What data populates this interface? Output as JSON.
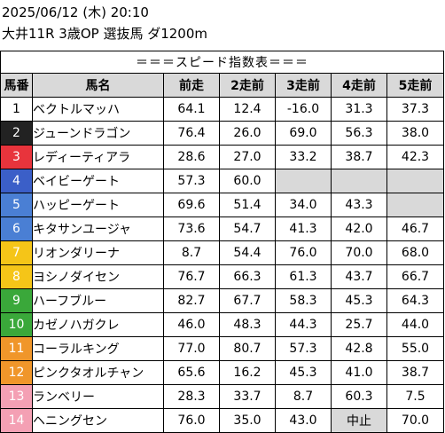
{
  "header": {
    "line1": "2025/06/12 (木) 20:10",
    "line2": "大井11R 3歳OP 選抜馬 ダ1200m"
  },
  "table_title": "＝＝＝スピード指数表＝＝＝",
  "columns": [
    "馬番",
    "馬名",
    "前走",
    "2走前",
    "3走前",
    "4走前",
    "5走前"
  ],
  "colors": {
    "1": "#ffffff",
    "2": "#222222",
    "3": "#e8343c",
    "4": "#3b5fc8",
    "5": "#4a7fd4",
    "6": "#4a7fd4",
    "7": "#f5c518",
    "8": "#f5c518",
    "9": "#3aa83a",
    "10": "#3aa83a",
    "11": "#f0962a",
    "12": "#f0962a",
    "13": "#f4a0b4",
    "14": "#f4a0b4"
  },
  "rows": [
    {
      "num": "1",
      "name": "ベクトルマッハ",
      "v": [
        "64.1",
        "12.4",
        "-16.0",
        "31.3",
        "37.3"
      ],
      "bg": "#ffffff",
      "fg": "#000000"
    },
    {
      "num": "2",
      "name": "ジューンドラゴン",
      "v": [
        "76.4",
        "26.0",
        "69.0",
        "56.3",
        "38.0"
      ],
      "bg": "#222222",
      "fg": "#ffffff"
    },
    {
      "num": "3",
      "name": "レディーティアラ",
      "v": [
        "28.6",
        "27.0",
        "33.2",
        "38.7",
        "42.3"
      ],
      "bg": "#e8343c",
      "fg": "#ffffff"
    },
    {
      "num": "4",
      "name": "ベイビーゲート",
      "v": [
        "57.3",
        "60.0",
        "",
        "",
        ""
      ],
      "bg": "#3b5fc8",
      "fg": "#ffffff"
    },
    {
      "num": "5",
      "name": "ハッピーゲート",
      "v": [
        "69.6",
        "51.4",
        "34.0",
        "43.3",
        ""
      ],
      "bg": "#4a7fd4",
      "fg": "#ffffff"
    },
    {
      "num": "6",
      "name": "キタサンユージャ",
      "v": [
        "73.6",
        "54.7",
        "41.3",
        "42.0",
        "46.7"
      ],
      "bg": "#4a7fd4",
      "fg": "#ffffff"
    },
    {
      "num": "7",
      "name": "リオンダリーナ",
      "v": [
        "8.7",
        "54.4",
        "76.0",
        "70.0",
        "68.0"
      ],
      "bg": "#f5c518",
      "fg": "#ffffff"
    },
    {
      "num": "8",
      "name": "ヨシノダイセン",
      "v": [
        "76.7",
        "66.3",
        "61.3",
        "43.7",
        "66.7"
      ],
      "bg": "#f5c518",
      "fg": "#ffffff"
    },
    {
      "num": "9",
      "name": "ハーフブルー",
      "v": [
        "82.7",
        "67.7",
        "58.3",
        "45.3",
        "64.3"
      ],
      "bg": "#3aa83a",
      "fg": "#ffffff"
    },
    {
      "num": "10",
      "name": "カゼノハガクレ",
      "v": [
        "46.0",
        "48.3",
        "44.3",
        "25.7",
        "44.0"
      ],
      "bg": "#3aa83a",
      "fg": "#ffffff"
    },
    {
      "num": "11",
      "name": "コーラルキング",
      "v": [
        "77.0",
        "80.7",
        "57.3",
        "42.8",
        "55.0"
      ],
      "bg": "#f0962a",
      "fg": "#ffffff"
    },
    {
      "num": "12",
      "name": "ピンクタオルチャン",
      "v": [
        "65.6",
        "16.2",
        "45.3",
        "41.0",
        "38.7"
      ],
      "bg": "#f0962a",
      "fg": "#ffffff"
    },
    {
      "num": "13",
      "name": "ランベリー",
      "v": [
        "28.3",
        "33.7",
        "8.7",
        "60.3",
        "7.5"
      ],
      "bg": "#f4a0b4",
      "fg": "#ffffff"
    },
    {
      "num": "14",
      "name": "ヘニングセン",
      "v": [
        "76.0",
        "35.0",
        "43.0",
        "中止",
        "70.0"
      ],
      "bg": "#f4a0b4",
      "fg": "#ffffff"
    }
  ]
}
